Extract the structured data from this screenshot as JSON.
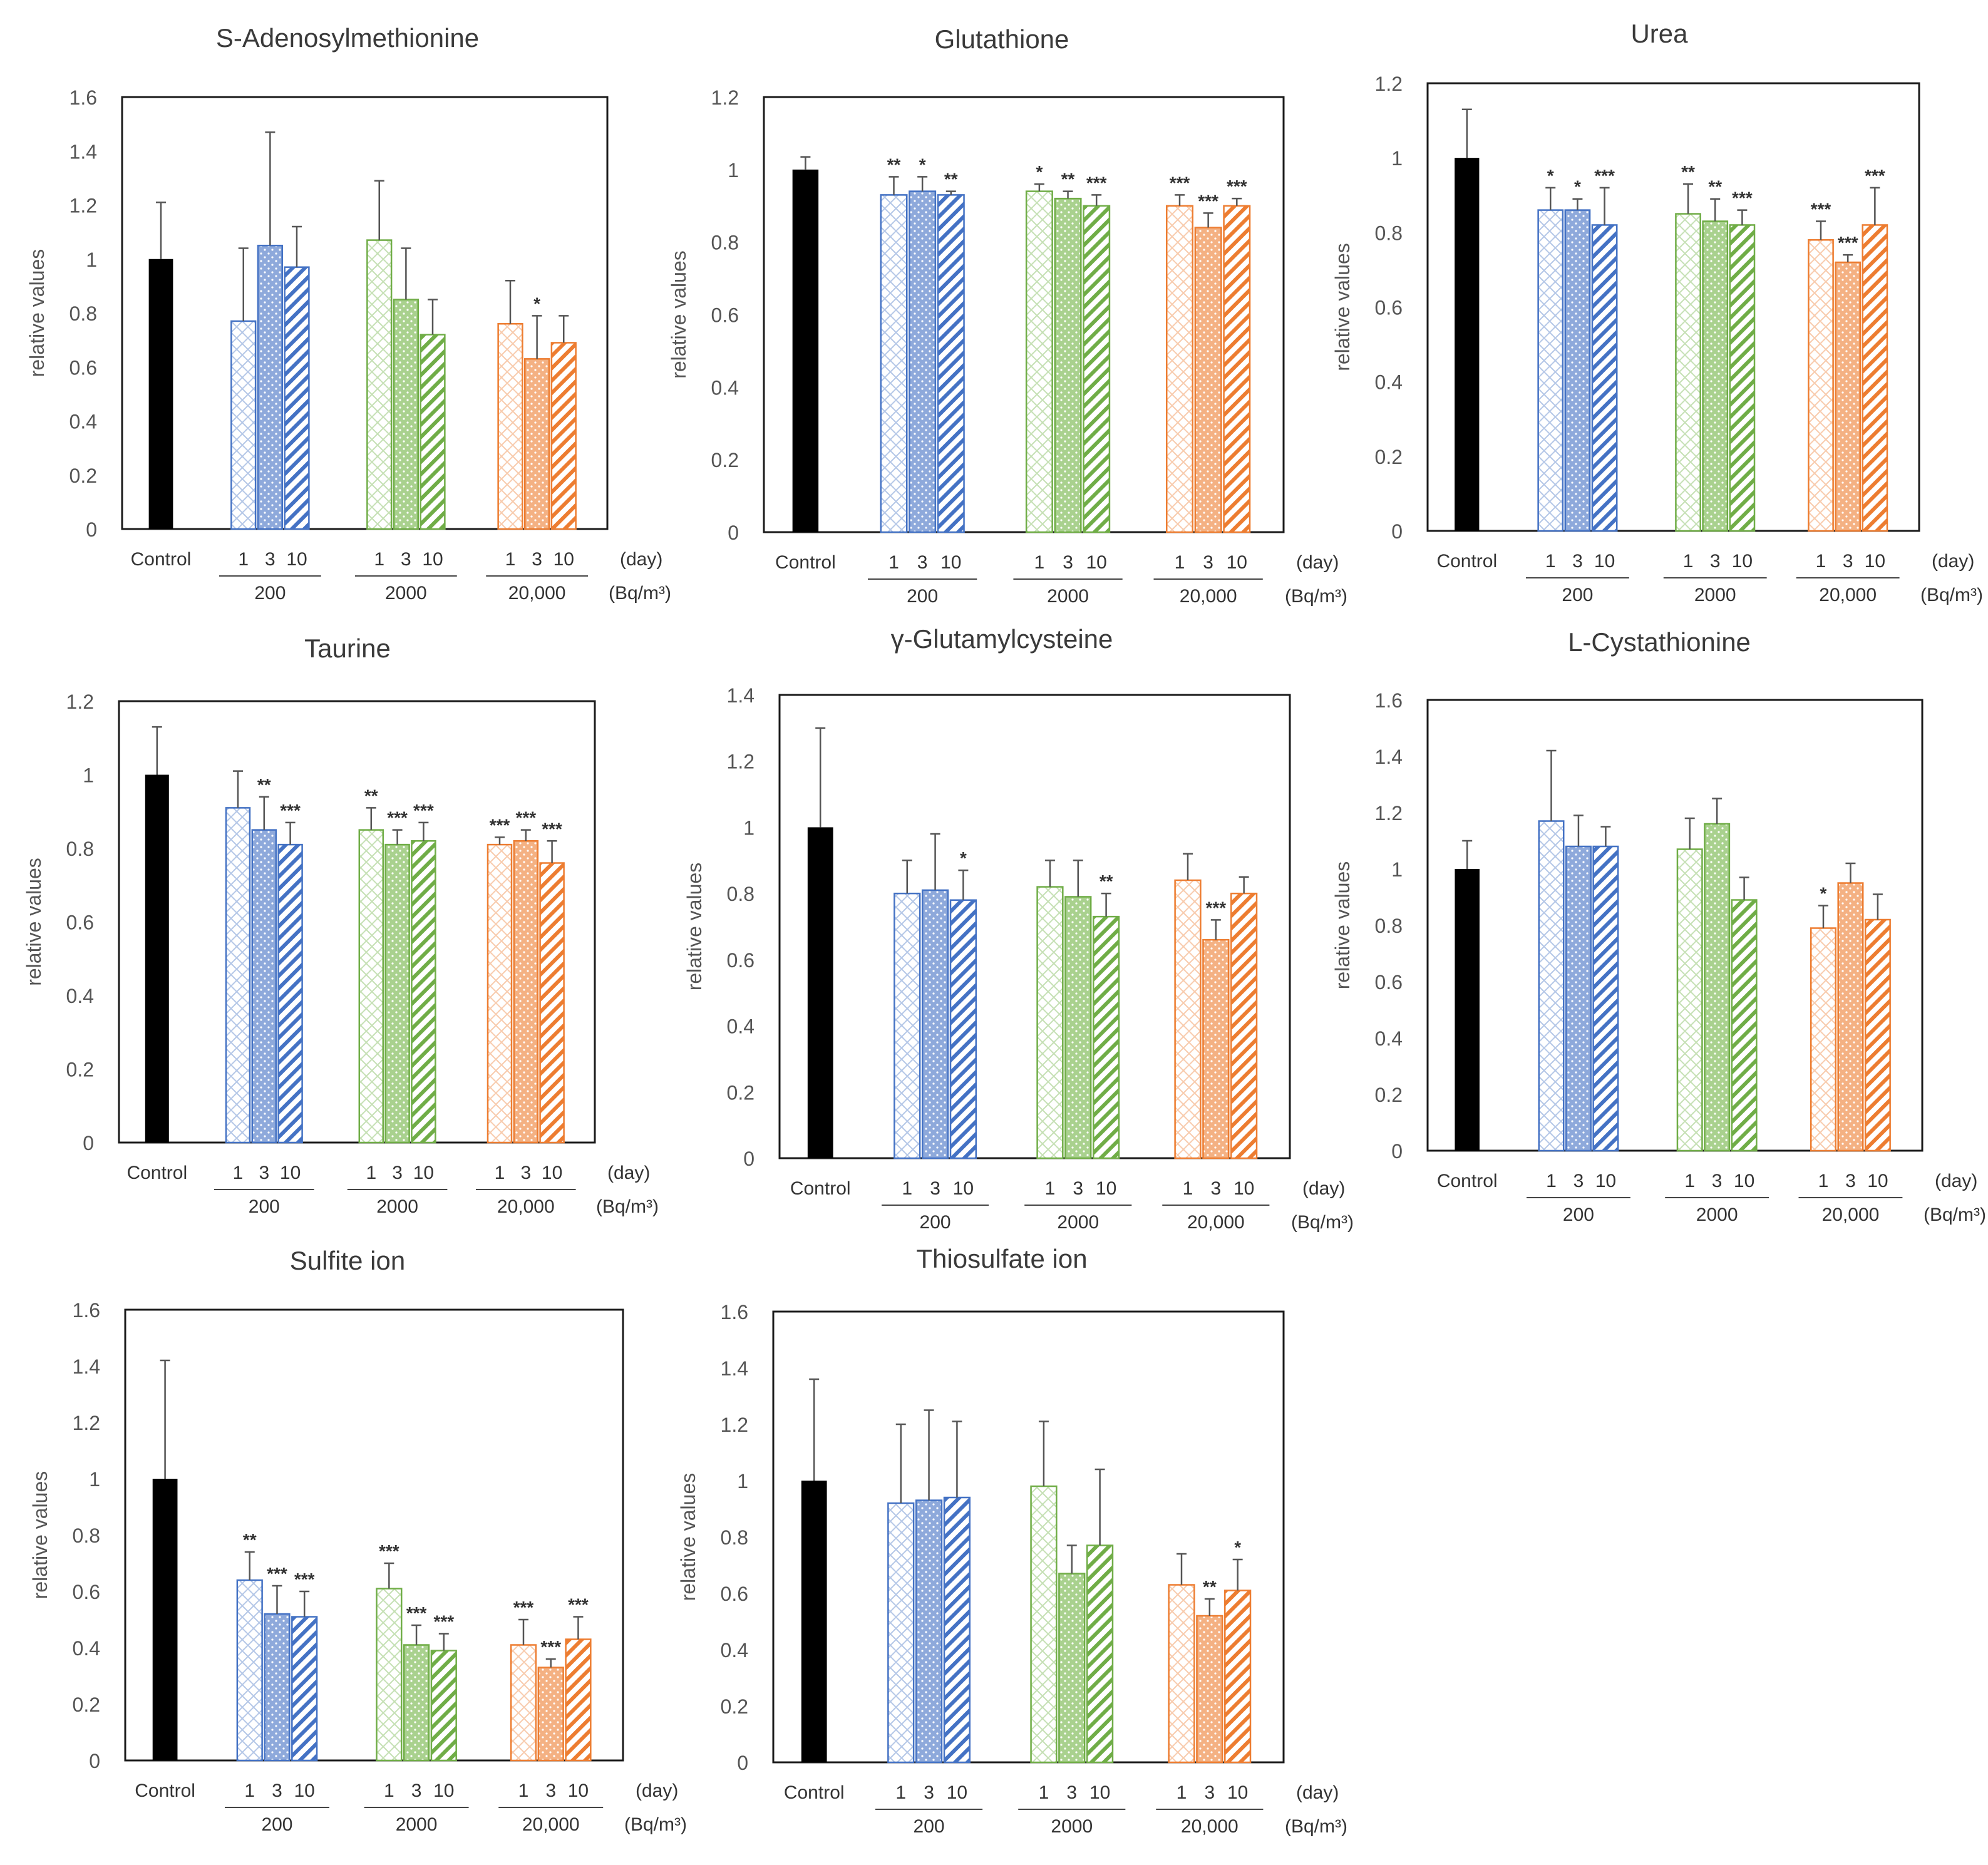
{
  "figure": {
    "ylabel": "relative values",
    "control_label": "Control",
    "day_labels": [
      "1",
      "3",
      "10"
    ],
    "day_unit": "(day)",
    "dose_unit": "(Bq/m³)",
    "doses": [
      "200",
      "2000",
      "20,000"
    ]
  },
  "colors": {
    "control": "#000000",
    "dose_200": "#4472C4",
    "dose_200_fill": "#8EA9DB",
    "dose_2000": "#70AD47",
    "dose_2000_fill": "#A9D18E",
    "dose_20000": "#ED7D31",
    "dose_20000_fill": "#F4B183"
  },
  "chart_data": [
    {
      "type": "bar",
      "title": "S-Adenosylmethionine",
      "ylabel": "relative values",
      "ylim": [
        0,
        1.6
      ],
      "yticks": [
        "0",
        "0.2",
        "0.4",
        "0.6",
        "0.8",
        "1",
        "1.2",
        "1.4",
        "1.6"
      ],
      "control": {
        "value": 1.0,
        "err": 0.21
      },
      "series": [
        {
          "name": "200",
          "values": [
            0.77,
            1.05,
            0.97
          ],
          "errors": [
            0.27,
            0.42,
            0.15
          ],
          "sig": [
            "",
            "",
            ""
          ]
        },
        {
          "name": "2000",
          "values": [
            1.07,
            0.85,
            0.72
          ],
          "errors": [
            0.22,
            0.19,
            0.13
          ],
          "sig": [
            "",
            "",
            ""
          ]
        },
        {
          "name": "20,000",
          "values": [
            0.76,
            0.63,
            0.69
          ],
          "errors": [
            0.16,
            0.16,
            0.1
          ],
          "sig": [
            "",
            "*",
            ""
          ]
        }
      ]
    },
    {
      "type": "bar",
      "title": "Glutathione",
      "ylabel": "relative values",
      "ylim": [
        0,
        1.2
      ],
      "yticks": [
        "0",
        "0.2",
        "0.4",
        "0.6",
        "0.8",
        "1",
        "1.2"
      ],
      "control": {
        "value": 1.0,
        "err": 0.035
      },
      "series": [
        {
          "name": "200",
          "values": [
            0.93,
            0.94,
            0.93
          ],
          "errors": [
            0.05,
            0.04,
            0.01
          ],
          "sig": [
            "**",
            "*",
            "**"
          ]
        },
        {
          "name": "2000",
          "values": [
            0.94,
            0.92,
            0.9
          ],
          "errors": [
            0.02,
            0.02,
            0.03
          ],
          "sig": [
            "*",
            "**",
            "***"
          ]
        },
        {
          "name": "20,000",
          "values": [
            0.9,
            0.84,
            0.9
          ],
          "errors": [
            0.03,
            0.04,
            0.02
          ],
          "sig": [
            "***",
            "***",
            "***"
          ]
        }
      ]
    },
    {
      "type": "bar",
      "title": "Urea",
      "ylabel": "relative values",
      "ylim": [
        0,
        1.2
      ],
      "yticks": [
        "0",
        "0.2",
        "0.4",
        "0.6",
        "0.8",
        "1",
        "1.2"
      ],
      "control": {
        "value": 1.0,
        "err": 0.13
      },
      "series": [
        {
          "name": "200",
          "values": [
            0.86,
            0.86,
            0.82
          ],
          "errors": [
            0.06,
            0.03,
            0.1
          ],
          "sig": [
            "*",
            "*",
            "***"
          ]
        },
        {
          "name": "2000",
          "values": [
            0.85,
            0.83,
            0.82
          ],
          "errors": [
            0.08,
            0.06,
            0.04
          ],
          "sig": [
            "**",
            "**",
            "***"
          ]
        },
        {
          "name": "20,000",
          "values": [
            0.78,
            0.72,
            0.82
          ],
          "errors": [
            0.05,
            0.02,
            0.1
          ],
          "sig": [
            "***",
            "***",
            "***"
          ]
        }
      ]
    },
    {
      "type": "bar",
      "title": "Taurine",
      "ylabel": "relative values",
      "ylim": [
        0,
        1.2
      ],
      "yticks": [
        "0",
        "0.2",
        "0.4",
        "0.6",
        "0.8",
        "1",
        "1.2"
      ],
      "control": {
        "value": 1.0,
        "err": 0.13
      },
      "series": [
        {
          "name": "200",
          "values": [
            0.91,
            0.85,
            0.81
          ],
          "errors": [
            0.1,
            0.09,
            0.06
          ],
          "sig": [
            "",
            "**",
            "***"
          ]
        },
        {
          "name": "2000",
          "values": [
            0.85,
            0.81,
            0.82
          ],
          "errors": [
            0.06,
            0.04,
            0.05
          ],
          "sig": [
            "**",
            "***",
            "***"
          ]
        },
        {
          "name": "20,000",
          "values": [
            0.81,
            0.82,
            0.76
          ],
          "errors": [
            0.02,
            0.03,
            0.06
          ],
          "sig": [
            "***",
            "***",
            "***"
          ]
        }
      ]
    },
    {
      "type": "bar",
      "title": "γ-Glutamylcysteine",
      "ylabel": "relative values",
      "ylim": [
        0,
        1.4
      ],
      "yticks": [
        "0",
        "0.2",
        "0.4",
        "0.6",
        "0.8",
        "1",
        "1.2",
        "1.4"
      ],
      "control": {
        "value": 1.0,
        "err": 0.3
      },
      "series": [
        {
          "name": "200",
          "values": [
            0.8,
            0.81,
            0.78
          ],
          "errors": [
            0.1,
            0.17,
            0.09
          ],
          "sig": [
            "",
            "",
            "*"
          ]
        },
        {
          "name": "2000",
          "values": [
            0.82,
            0.79,
            0.73
          ],
          "errors": [
            0.08,
            0.11,
            0.07
          ],
          "sig": [
            "",
            "",
            "**"
          ]
        },
        {
          "name": "20,000",
          "values": [
            0.84,
            0.66,
            0.8
          ],
          "errors": [
            0.08,
            0.06,
            0.05
          ],
          "sig": [
            "",
            "***",
            ""
          ]
        }
      ]
    },
    {
      "type": "bar",
      "title": "L-Cystathionine",
      "ylabel": "relative values",
      "ylim": [
        0,
        1.6
      ],
      "yticks": [
        "0",
        "0.2",
        "0.4",
        "0.6",
        "0.8",
        "1",
        "1.2",
        "1.4",
        "1.6"
      ],
      "control": {
        "value": 1.0,
        "err": 0.1
      },
      "series": [
        {
          "name": "200",
          "values": [
            1.17,
            1.08,
            1.08
          ],
          "errors": [
            0.25,
            0.11,
            0.07
          ],
          "sig": [
            "",
            "",
            ""
          ]
        },
        {
          "name": "2000",
          "values": [
            1.07,
            1.16,
            0.89
          ],
          "errors": [
            0.11,
            0.09,
            0.08
          ],
          "sig": [
            "",
            "",
            ""
          ]
        },
        {
          "name": "20,000",
          "values": [
            0.79,
            0.95,
            0.82
          ],
          "errors": [
            0.08,
            0.07,
            0.09
          ],
          "sig": [
            "*",
            "",
            ""
          ]
        }
      ]
    },
    {
      "type": "bar",
      "title": "Sulfite ion",
      "ylabel": "relative values",
      "ylim": [
        0,
        1.6
      ],
      "yticks": [
        "0",
        "0.2",
        "0.4",
        "0.6",
        "0.8",
        "1",
        "1.2",
        "1.4",
        "1.6"
      ],
      "control": {
        "value": 1.0,
        "err": 0.42
      },
      "series": [
        {
          "name": "200",
          "values": [
            0.64,
            0.52,
            0.51
          ],
          "errors": [
            0.1,
            0.1,
            0.09
          ],
          "sig": [
            "**",
            "***",
            "***"
          ]
        },
        {
          "name": "2000",
          "values": [
            0.61,
            0.41,
            0.39
          ],
          "errors": [
            0.09,
            0.07,
            0.06
          ],
          "sig": [
            "***",
            "***",
            "***"
          ]
        },
        {
          "name": "20,000",
          "values": [
            0.41,
            0.33,
            0.43
          ],
          "errors": [
            0.09,
            0.03,
            0.08
          ],
          "sig": [
            "***",
            "***",
            "***"
          ]
        }
      ]
    },
    {
      "type": "bar",
      "title": "Thiosulfate ion",
      "ylabel": "relative values",
      "ylim": [
        0,
        1.6
      ],
      "yticks": [
        "0",
        "0.2",
        "0.4",
        "0.6",
        "0.8",
        "1",
        "1.2",
        "1.4",
        "1.6"
      ],
      "control": {
        "value": 1.0,
        "err": 0.36
      },
      "series": [
        {
          "name": "200",
          "values": [
            0.92,
            0.93,
            0.94
          ],
          "errors": [
            0.28,
            0.32,
            0.27
          ],
          "sig": [
            "",
            "",
            ""
          ]
        },
        {
          "name": "2000",
          "values": [
            0.98,
            0.67,
            0.77
          ],
          "errors": [
            0.23,
            0.1,
            0.27
          ],
          "sig": [
            "",
            "",
            ""
          ]
        },
        {
          "name": "20,000",
          "values": [
            0.63,
            0.52,
            0.61
          ],
          "errors": [
            0.11,
            0.06,
            0.11
          ],
          "sig": [
            "",
            "**",
            "*"
          ]
        }
      ]
    }
  ]
}
